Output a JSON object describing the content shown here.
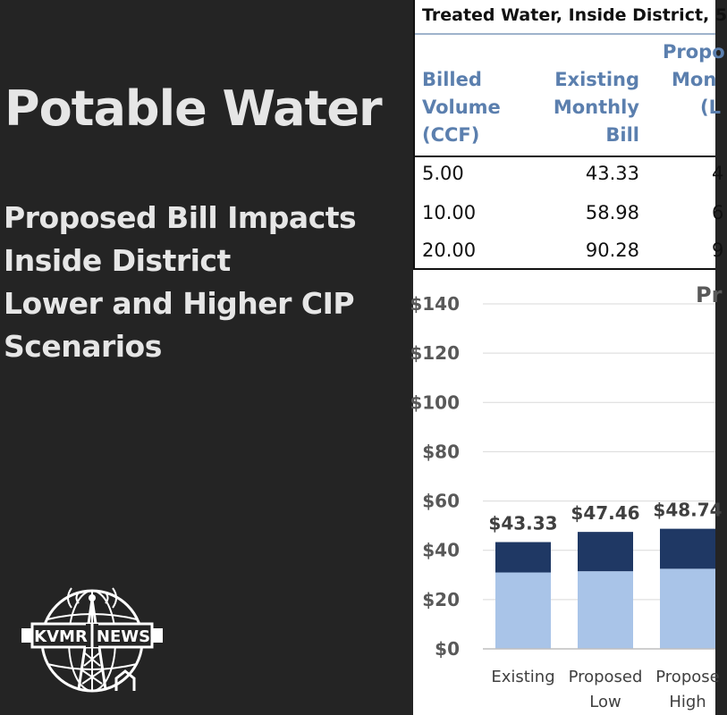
{
  "left": {
    "title": "Potable Water",
    "subtitle_lines": [
      "Proposed Bill Impacts",
      "Inside District",
      "Lower and Higher CIP",
      "Scenarios"
    ],
    "logo": {
      "text_left": "KVMR",
      "text_right": "NEWS",
      "icon": "radio-tower-icon"
    }
  },
  "table": {
    "title": "Treated Water, Inside District, 5",
    "headers": {
      "volume": [
        "Billed",
        "Volume",
        "(CCF)"
      ],
      "existing": [
        "Existing",
        "Monthly",
        "Bill"
      ],
      "proposed": [
        "Propo",
        "Mon",
        "(L"
      ]
    },
    "rows": [
      {
        "volume": "5.00",
        "existing": "43.33",
        "proposed": "4"
      },
      {
        "volume": "10.00",
        "existing": "58.98",
        "proposed": "6"
      },
      {
        "volume": "20.00",
        "existing": "90.28",
        "proposed": "9"
      }
    ]
  },
  "chart_data": {
    "type": "bar",
    "title": "Pr",
    "categories": [
      [
        "Existing"
      ],
      [
        "Proposed",
        "Low"
      ],
      [
        "Propose",
        "High"
      ]
    ],
    "series": [
      {
        "values": [
          31,
          31.5,
          32.5
        ],
        "color": "#a9c4e8"
      },
      {
        "values": [
          12.33,
          15.96,
          16.24
        ],
        "color": "#1f3864"
      }
    ],
    "totals": [
      43.33,
      47.46,
      48.74
    ],
    "total_labels": [
      "$43.33",
      "$47.46",
      "$48.74"
    ],
    "ylim": [
      0,
      140
    ],
    "yticks": [
      0,
      20,
      40,
      60,
      80,
      100,
      120,
      140
    ],
    "ytick_labels": [
      "$0",
      "$20",
      "$40",
      "$60",
      "$80",
      "$100",
      "$120",
      "$140"
    ],
    "grid": true
  }
}
